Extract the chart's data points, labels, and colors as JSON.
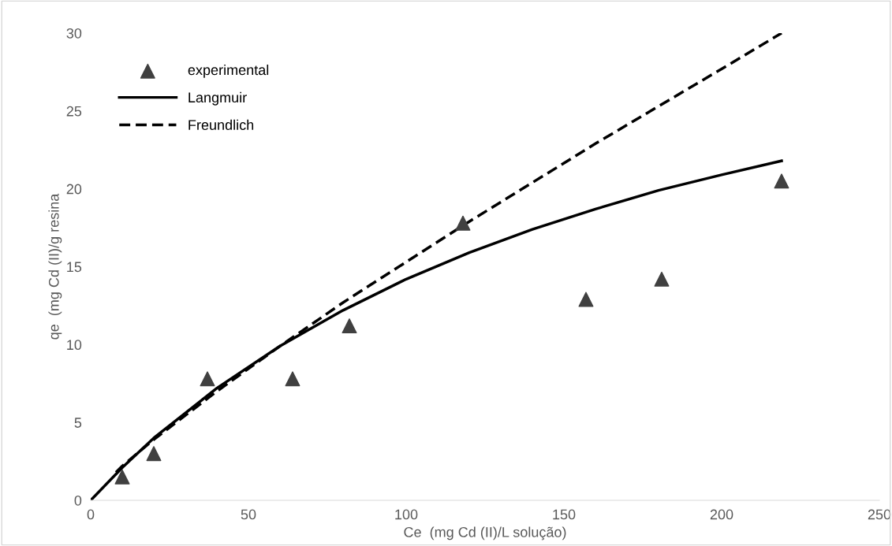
{
  "chart_data": {
    "type": "scatter",
    "xlabel": "Ce  (mg Cd (II)/L solução)",
    "ylabel": "qe  (mg Cd (II)/g resina",
    "xlim": [
      0,
      250
    ],
    "xticks": [
      0,
      50,
      100,
      150,
      200,
      250
    ],
    "ylim": [
      0,
      30
    ],
    "yticks": [
      0,
      5,
      10,
      15,
      20,
      25,
      30
    ],
    "grid": false,
    "legend": "top left",
    "series": [
      {
        "name": "experimental",
        "marker": "triangle",
        "color": "#404040",
        "x": [
          10,
          20,
          37,
          64,
          82,
          118,
          157,
          181,
          219
        ],
        "values": [
          1.5,
          3.0,
          7.8,
          7.8,
          11.2,
          17.8,
          12.9,
          14.2,
          20.5
        ]
      },
      {
        "name": "Langmuir",
        "type": "line",
        "line_style": "solid",
        "color": "#000000",
        "x": [
          0,
          10,
          20,
          40,
          60,
          80,
          100,
          120,
          140,
          160,
          180,
          200,
          219
        ],
        "values": [
          0,
          2.1,
          4.0,
          7.2,
          9.9,
          12.2,
          14.2,
          15.9,
          17.4,
          18.7,
          19.9,
          20.9,
          21.8
        ]
      },
      {
        "name": "Freundlich",
        "type": "line",
        "line_style": "dashed",
        "color": "#000000",
        "x": [
          8,
          10,
          20,
          40,
          60,
          80,
          100,
          120,
          140,
          160,
          180,
          200,
          219
        ],
        "values": [
          1.8,
          2.2,
          3.9,
          7.0,
          9.9,
          12.7,
          15.3,
          17.9,
          20.4,
          22.9,
          25.3,
          27.7,
          30.0
        ]
      }
    ]
  }
}
